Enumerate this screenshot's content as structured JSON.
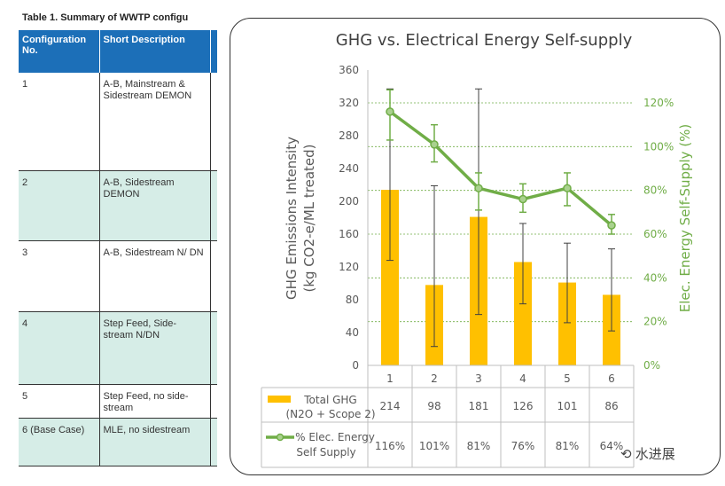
{
  "table": {
    "title": "Table 1.  Summary of WWTP configu",
    "headers": [
      "Configuration No.",
      "Short Description"
    ],
    "rows": [
      {
        "no": "1",
        "description": "A-B, Mainstream & Sidestream DEMON"
      },
      {
        "no": "2",
        "description": "A-B, Sidestream DEMON"
      },
      {
        "no": "3",
        "description": "A-B, Sidestream N/ DN"
      },
      {
        "no": "4",
        "description": "Step Feed, Side-stream N/DN"
      },
      {
        "no": "5",
        "description": "Step Feed, no side-stream"
      },
      {
        "no": "6 (Base Case)",
        "description": "MLE, no sidestream"
      }
    ]
  },
  "chart_data": {
    "type": "bar",
    "title": "GHG vs. Electrical Energy Self-supply",
    "categories": [
      "1",
      "2",
      "3",
      "4",
      "5",
      "6"
    ],
    "ylabel": "GHG Emissions Intensity (kg CO2-e/ML treated)",
    "y2label": "Elec. Energy Self-Supply (%)",
    "ylim": [
      0,
      360
    ],
    "yticks": [
      0,
      40,
      80,
      120,
      160,
      200,
      240,
      280,
      320,
      360
    ],
    "y2lim": [
      0,
      1.35
    ],
    "y2ticks": [
      "0%",
      "20%",
      "40%",
      "60%",
      "80%",
      "100%",
      "120%"
    ],
    "grid": "horizontal dotted green at secondary-axis ticks",
    "series": [
      {
        "name": "Total GHG (N2O + Scope 2)",
        "kind": "bar",
        "color": "#ffc000",
        "values": [
          214,
          98,
          181,
          126,
          101,
          86
        ],
        "error_low": [
          128,
          23,
          62,
          75,
          52,
          42
        ],
        "error_high": [
          337,
          219,
          337,
          173,
          149,
          142
        ],
        "table_labels": [
          "214",
          "98",
          "181",
          "126",
          "101",
          "86"
        ]
      },
      {
        "name": "% Elec. Energy Self Supply",
        "kind": "line",
        "axis": "secondary",
        "color": "#70ad47",
        "values": [
          1.16,
          1.01,
          0.81,
          0.76,
          0.81,
          0.64
        ],
        "error_low": [
          1.03,
          0.93,
          0.71,
          0.7,
          0.73,
          0.6
        ],
        "error_high": [
          1.26,
          1.1,
          0.88,
          0.83,
          0.88,
          0.69
        ],
        "table_labels": [
          "116%",
          "101%",
          "81%",
          "76%",
          "81%",
          "64%"
        ]
      }
    ],
    "legend": "data table below plot"
  },
  "watermark": "水进展"
}
